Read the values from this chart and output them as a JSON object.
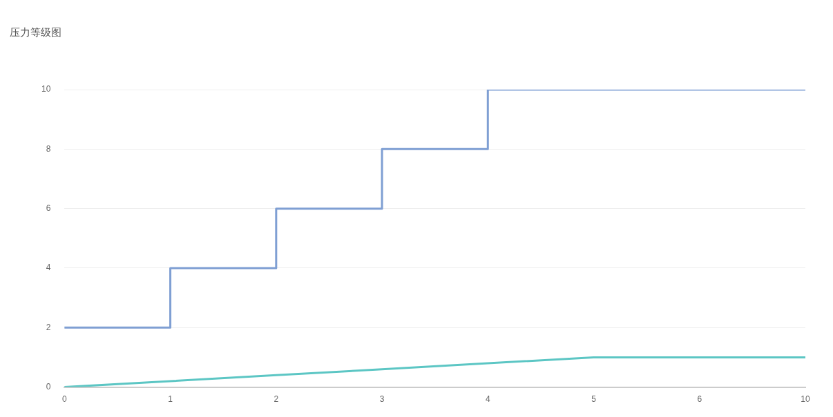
{
  "chart_data": {
    "type": "step",
    "title": "压力等级图",
    "categories": [
      "0",
      "1",
      "2",
      "3",
      "4",
      "5",
      "6",
      "10"
    ],
    "series": [
      {
        "color": "#7f9fd3",
        "values": [
          2,
          4,
          6,
          8,
          10,
          10,
          10,
          10
        ]
      },
      {
        "type": "line",
        "color": "#5cc6c4",
        "values": [
          0,
          0.2,
          0.4,
          0.6,
          0.8,
          1,
          1,
          1
        ]
      }
    ],
    "ylim": [
      0,
      10
    ],
    "yticks": [
      0,
      2,
      4,
      6,
      8,
      10
    ],
    "grid": "y",
    "legend": false,
    "marker": "none"
  }
}
